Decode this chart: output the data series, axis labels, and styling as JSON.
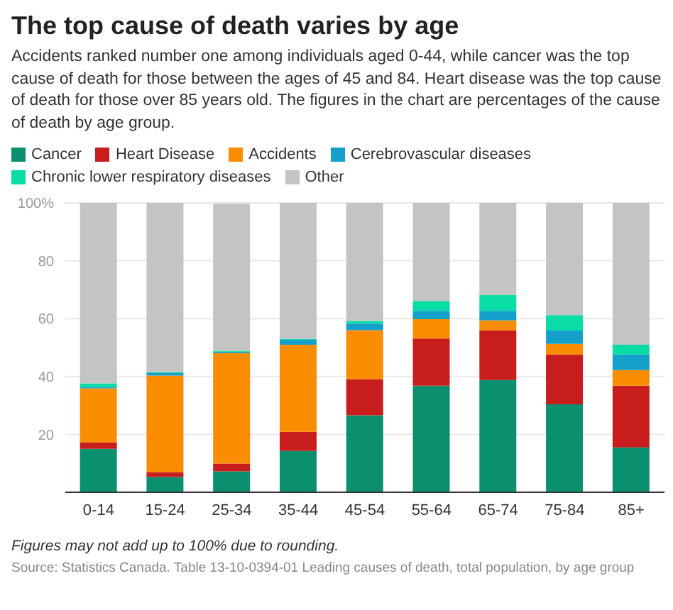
{
  "chart_data": {
    "type": "bar",
    "title": "The top cause of death varies by age",
    "subtitle": "Accidents ranked number one among individuals aged 0-44, while cancer was the top cause of death for those between the ages of 45 and 84. Heart disease was the top cause of death for those over 85 years old. The figures in the chart are percentages of the cause of death by age group.",
    "categories": [
      "0-14",
      "15-24",
      "25-34",
      "35-44",
      "45-54",
      "55-64",
      "65-74",
      "75-84",
      "85+"
    ],
    "stacked": true,
    "series": [
      {
        "name": "Cancer",
        "color": "#0a8f6f",
        "values": [
          15,
          5.3,
          7.2,
          14.3,
          26.6,
          36.8,
          38.8,
          30.4,
          15.5
        ]
      },
      {
        "name": "Heart Disease",
        "color": "#c71e1d",
        "values": [
          2.3,
          1.7,
          2.7,
          6.6,
          12.5,
          16.3,
          17.2,
          17.2,
          21.3
        ]
      },
      {
        "name": "Accidents",
        "color": "#fa8c00",
        "values": [
          18.6,
          33.3,
          38.2,
          30.1,
          16.9,
          6.7,
          3.4,
          3.7,
          5.4
        ]
      },
      {
        "name": "Cerebrovascular diseases",
        "color": "#15a0cc",
        "values": [
          0.5,
          0.9,
          0.5,
          1.7,
          2.3,
          2.9,
          3.3,
          4.6,
          5.4
        ]
      },
      {
        "name": "Chronic lower respiratory diseases",
        "color": "#09dca4",
        "values": [
          1.2,
          0.2,
          0.3,
          0.3,
          0.9,
          3.4,
          5.5,
          5.3,
          3.4
        ]
      },
      {
        "name": "Other",
        "color": "#c4c4c4",
        "values": [
          62.4,
          58.6,
          50.8,
          47,
          40.8,
          33.9,
          31.8,
          38.8,
          49
        ]
      }
    ],
    "ylim": [
      0,
      100
    ],
    "yticks": [
      {
        "value": 0,
        "label": null
      },
      20,
      40,
      60,
      80,
      {
        "value": 100,
        "label": "100%"
      }
    ],
    "grid": "y",
    "legend": "top",
    "annotations": [
      "Figures may not add up to 100% due to rounding.",
      "Source: Statistics Canada. Table 13-10-0394-01 Leading causes of death, total population, by age group"
    ]
  }
}
